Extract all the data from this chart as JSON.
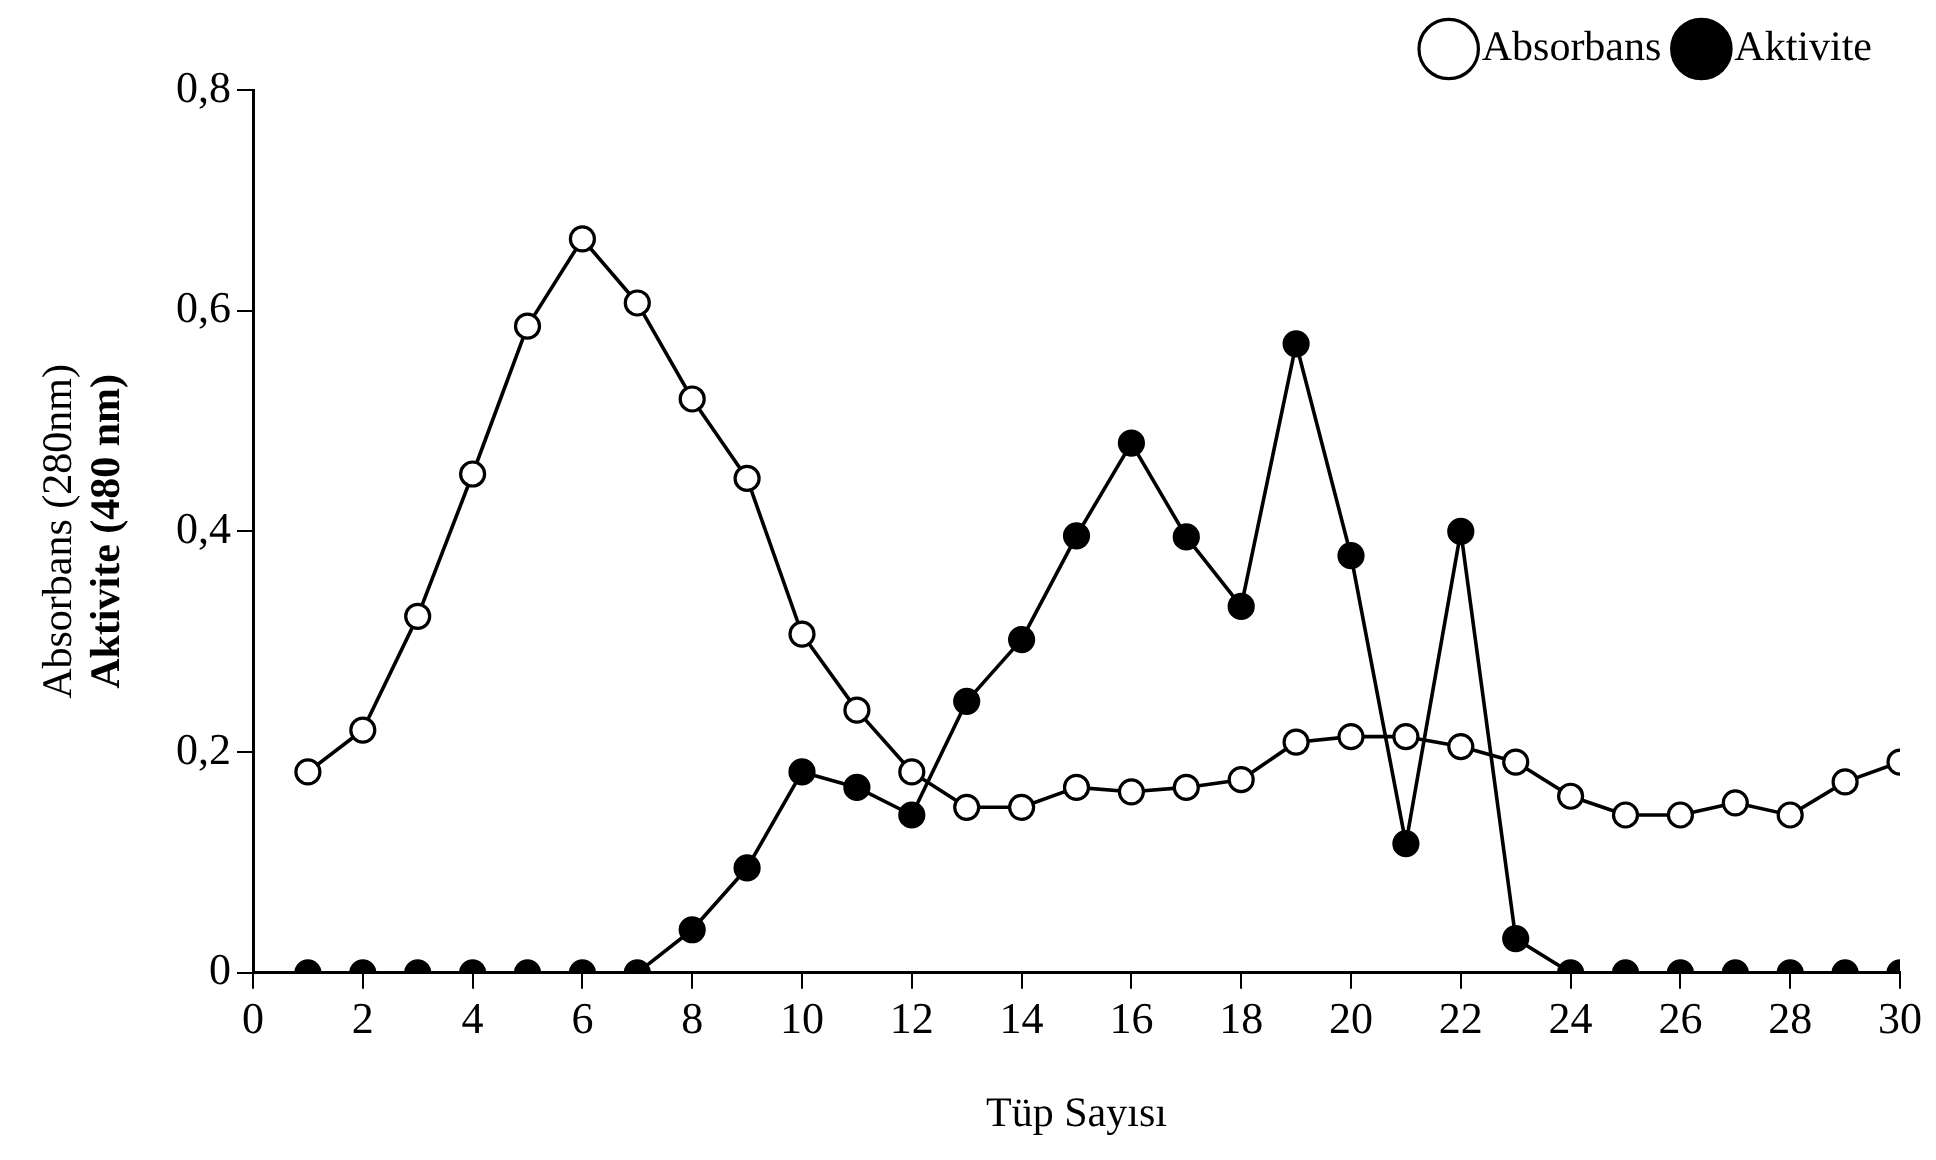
{
  "chart_data": {
    "type": "line",
    "xlabel": "Tüp Sayısı",
    "ylabel": "Absorbans (280nm)\nAktivite (480 nm)",
    "x": [
      1,
      2,
      3,
      4,
      5,
      6,
      7,
      8,
      9,
      10,
      11,
      12,
      13,
      14,
      15,
      16,
      17,
      18,
      19,
      20,
      21,
      22,
      23,
      24,
      25,
      26,
      27,
      28,
      29,
      30
    ],
    "series": [
      {
        "name": "Absorbans",
        "color": "#000000",
        "values": [
          0.182,
          0.22,
          0.323,
          0.452,
          0.586,
          0.665,
          0.607,
          0.52,
          0.448,
          0.307,
          0.238,
          0.182,
          0.15,
          0.15,
          0.168,
          0.164,
          0.168,
          0.175,
          0.209,
          0.214,
          0.214,
          0.205,
          0.191,
          0.16,
          0.143,
          0.143,
          0.154,
          0.143,
          0.173,
          0.191
        ]
      },
      {
        "name": "Aktivite",
        "color": "#000000",
        "values": [
          0,
          0,
          0,
          0,
          0,
          0,
          0,
          0.039,
          0.095,
          0.182,
          0.168,
          0.143,
          0.246,
          0.302,
          0.396,
          0.48,
          0.395,
          0.332,
          0.57,
          0.378,
          0.117,
          0.4,
          0.031,
          0,
          0,
          0,
          0,
          0,
          0,
          0
        ]
      }
    ],
    "xlim": [
      0,
      30
    ],
    "xticks": [
      0,
      2,
      4,
      6,
      8,
      10,
      12,
      14,
      16,
      18,
      20,
      22,
      24,
      26,
      28,
      30
    ],
    "ylim": [
      0,
      0.8
    ],
    "yticks": [
      0,
      {
        "value": 0.2,
        "label": "0,2"
      },
      {
        "value": 0.4,
        "label": "0,4"
      },
      {
        "value": 0.6,
        "label": "0,6"
      },
      {
        "value": 0.8,
        "label": "0,8"
      }
    ],
    "grid": false,
    "legend": "top right",
    "marker": "circle",
    "line_style": "solid"
  }
}
